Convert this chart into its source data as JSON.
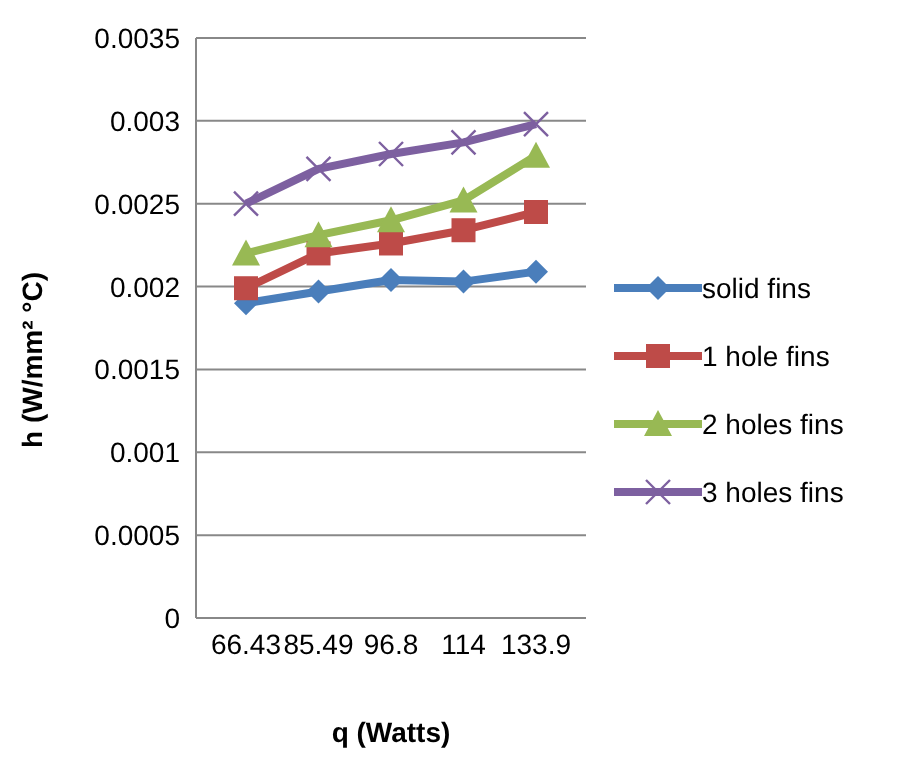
{
  "chart_data": {
    "type": "line",
    "xlabel": "q (Watts)",
    "ylabel": "h (W/mm² °C)",
    "categories": [
      "66.43",
      "85.49",
      "96.8",
      "114",
      "133.9"
    ],
    "series": [
      {
        "name": "solid fins",
        "color": "#4a7ebb",
        "marker": "diamond",
        "values": [
          0.0019,
          0.00197,
          0.00204,
          0.00203,
          0.00209
        ]
      },
      {
        "name": "1 hole fins",
        "color": "#be4b48",
        "marker": "square",
        "values": [
          0.00199,
          0.0022,
          0.00226,
          0.00234,
          0.00245
        ]
      },
      {
        "name": "2 holes fins",
        "color": "#98b954",
        "marker": "triangle",
        "values": [
          0.0022,
          0.00231,
          0.0024,
          0.00252,
          0.00279
        ]
      },
      {
        "name": "3 holes fins",
        "color": "#7d60a0",
        "marker": "cross",
        "values": [
          0.0025,
          0.00271,
          0.0028,
          0.00287,
          0.00298
        ]
      }
    ],
    "ylim": [
      0,
      0.0035
    ],
    "yticks": [
      0,
      0.0005,
      0.001,
      0.0015,
      0.002,
      0.0025,
      0.003,
      0.0035
    ],
    "grid": "y",
    "legend": "right"
  }
}
